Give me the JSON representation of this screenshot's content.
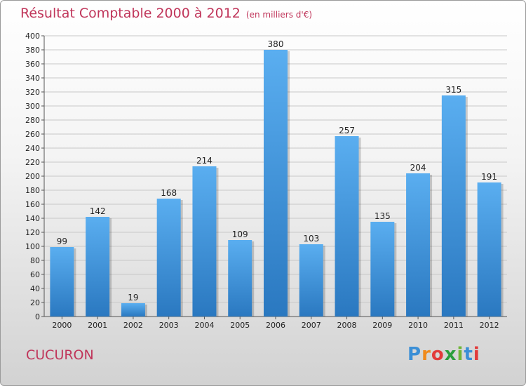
{
  "header": {
    "title": "Résultat Comptable 2000 à 2012",
    "subtitle": "(en milliers d'€)"
  },
  "commune": "CUCURON",
  "logo": {
    "letters": [
      "P",
      "r",
      "o",
      "x",
      "i",
      "t",
      "i"
    ],
    "colors": [
      "#3b8fd6",
      "#f08a1c",
      "#e23b3b",
      "#2a9e3c",
      "#6fb637",
      "#3b8fd6",
      "#e23b3b"
    ]
  },
  "chart_data": {
    "type": "bar",
    "categories": [
      "2000",
      "2001",
      "2002",
      "2003",
      "2004",
      "2005",
      "2006",
      "2007",
      "2008",
      "2009",
      "2010",
      "2011",
      "2012"
    ],
    "values": [
      99,
      142,
      19,
      168,
      214,
      109,
      380,
      103,
      257,
      135,
      204,
      315,
      191
    ],
    "ylim": [
      0,
      400
    ],
    "ytick_step": 20,
    "grid": true,
    "bar_color": "#3a8fd8",
    "data_labels": true
  }
}
